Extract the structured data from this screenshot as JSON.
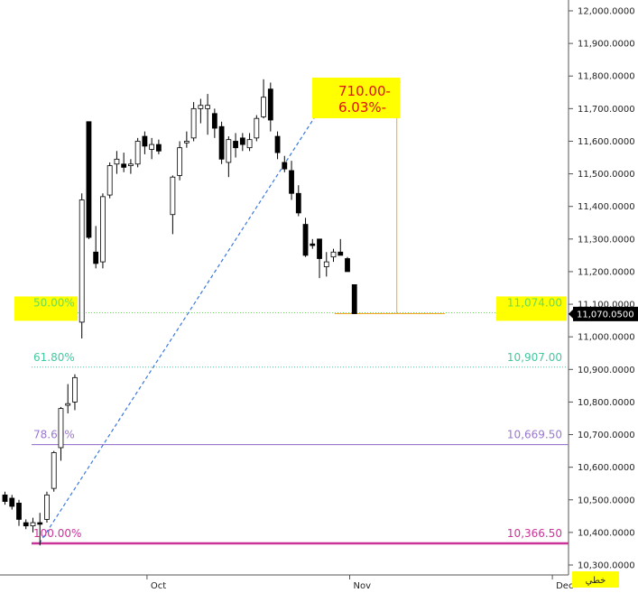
{
  "chart_data": {
    "type": "candlestick",
    "y_axis": {
      "position": "right",
      "min": 10250,
      "max": 12050,
      "ticks": [
        12000,
        11900,
        11800,
        11700,
        11600,
        11500,
        11400,
        11300,
        11200,
        11100,
        11000,
        10900,
        10800,
        10700,
        10600,
        10500,
        10400,
        10300
      ],
      "tick_labels": [
        "12,000.0000",
        "11,900.0000",
        "11,800.0000",
        "11,700.0000",
        "11,600.0000",
        "11,500.0000",
        "11,400.0000",
        "11,300.0000",
        "11,200.0000",
        "11,100.0000",
        "11,000.0000",
        "10,900.0000",
        "10,800.0000",
        "10,700.0000",
        "10,600.0000",
        "10,500.0000",
        "10,400.0000",
        "10,300.0000"
      ]
    },
    "x_axis": {
      "labels": [
        {
          "text": "Oct",
          "index": 20
        },
        {
          "text": "Nov",
          "index": 49
        },
        {
          "text": "Dec",
          "index": 78
        }
      ]
    },
    "last_price": {
      "value": 11070.05,
      "label": "11,070.0500",
      "color": "#000000"
    },
    "fib_levels": [
      {
        "pct": "50.00%",
        "value": 11074.0,
        "value_label": "11,074.00",
        "color": "#66dd55",
        "style": "dotted",
        "highlight": true
      },
      {
        "pct": "61.80%",
        "value": 10907.0,
        "value_label": "10,907.00",
        "color": "#44c8a0",
        "style": "dotted",
        "highlight": false
      },
      {
        "pct": "78.60%",
        "value": 10669.5,
        "value_label": "10,669.50",
        "color": "#9a78d0",
        "style": "solid",
        "highlight": false
      },
      {
        "pct": "100.00%",
        "value": 10366.5,
        "value_label": "10,366.50",
        "color": "#cc3399",
        "style": "solid-thick",
        "highlight": false
      }
    ],
    "fib_trendline": {
      "from": {
        "index": 5,
        "value": 10366.5
      },
      "to": {
        "index": 48,
        "value": 11781
      },
      "color": "#3a78e0"
    },
    "measure": {
      "line1": "710.00-",
      "line2": "6.03%-",
      "from": {
        "index": 48,
        "value": 11781
      },
      "to": {
        "index": 63,
        "value": 11071
      },
      "color": "#f5a623"
    },
    "candles": [
      {
        "o": 10515,
        "h": 10525,
        "l": 10485,
        "c": 10495
      },
      {
        "o": 10505,
        "h": 10515,
        "l": 10470,
        "c": 10480
      },
      {
        "o": 10490,
        "h": 10500,
        "l": 10420,
        "c": 10440
      },
      {
        "o": 10430,
        "h": 10440,
        "l": 10410,
        "c": 10420
      },
      {
        "o": 10420,
        "h": 10445,
        "l": 10400,
        "c": 10430
      },
      {
        "o": 10430,
        "h": 10460,
        "l": 10360,
        "c": 10425
      },
      {
        "o": 10440,
        "h": 10525,
        "l": 10430,
        "c": 10515
      },
      {
        "o": 10535,
        "h": 10650,
        "l": 10525,
        "c": 10645
      },
      {
        "o": 10660,
        "h": 10785,
        "l": 10620,
        "c": 10780
      },
      {
        "o": 10790,
        "h": 10855,
        "l": 10765,
        "c": 10795
      },
      {
        "o": 10800,
        "h": 10885,
        "l": 10775,
        "c": 10875
      },
      {
        "o": 11045,
        "h": 11440,
        "l": 10995,
        "c": 11420
      },
      {
        "o": 11660,
        "h": 11660,
        "l": 11300,
        "c": 11305
      },
      {
        "o": 11260,
        "h": 11340,
        "l": 11210,
        "c": 11225
      },
      {
        "o": 11230,
        "h": 11440,
        "l": 11210,
        "c": 11430
      },
      {
        "o": 11435,
        "h": 11535,
        "l": 11425,
        "c": 11525
      },
      {
        "o": 11530,
        "h": 11570,
        "l": 11500,
        "c": 11545
      },
      {
        "o": 11530,
        "h": 11565,
        "l": 11505,
        "c": 11520
      },
      {
        "o": 11525,
        "h": 11545,
        "l": 11500,
        "c": 11530
      },
      {
        "o": 11530,
        "h": 11610,
        "l": 11520,
        "c": 11600
      },
      {
        "o": 11615,
        "h": 11630,
        "l": 11560,
        "c": 11585
      },
      {
        "o": 11575,
        "h": 11610,
        "l": 11545,
        "c": 11590
      },
      {
        "o": 11590,
        "h": 11605,
        "l": 11560,
        "c": 11570
      },
      {
        "o": 11375,
        "h": 11495,
        "l": 11315,
        "c": 11490
      },
      {
        "o": 11495,
        "h": 11600,
        "l": 11480,
        "c": 11580
      },
      {
        "o": 11595,
        "h": 11630,
        "l": 11580,
        "c": 11600
      },
      {
        "o": 11610,
        "h": 11720,
        "l": 11600,
        "c": 11700
      },
      {
        "o": 11700,
        "h": 11730,
        "l": 11655,
        "c": 11710
      },
      {
        "o": 11700,
        "h": 11745,
        "l": 11620,
        "c": 11710
      },
      {
        "o": 11685,
        "h": 11700,
        "l": 11610,
        "c": 11640
      },
      {
        "o": 11645,
        "h": 11660,
        "l": 11530,
        "c": 11545
      },
      {
        "o": 11535,
        "h": 11615,
        "l": 11490,
        "c": 11605
      },
      {
        "o": 11600,
        "h": 11625,
        "l": 11550,
        "c": 11580
      },
      {
        "o": 11610,
        "h": 11625,
        "l": 11570,
        "c": 11590
      },
      {
        "o": 11580,
        "h": 11625,
        "l": 11570,
        "c": 11605
      },
      {
        "o": 11610,
        "h": 11680,
        "l": 11600,
        "c": 11670
      },
      {
        "o": 11675,
        "h": 11790,
        "l": 11670,
        "c": 11735
      },
      {
        "o": 11760,
        "h": 11780,
        "l": 11630,
        "c": 11665
      },
      {
        "o": 11615,
        "h": 11630,
        "l": 11545,
        "c": 11565
      },
      {
        "o": 11535,
        "h": 11555,
        "l": 11505,
        "c": 11515
      },
      {
        "o": 11510,
        "h": 11540,
        "l": 11420,
        "c": 11440
      },
      {
        "o": 11440,
        "h": 11465,
        "l": 11370,
        "c": 11380
      },
      {
        "o": 11345,
        "h": 11365,
        "l": 11245,
        "c": 11250
      },
      {
        "o": 11285,
        "h": 11300,
        "l": 11270,
        "c": 11280
      },
      {
        "o": 11300,
        "h": 11300,
        "l": 11180,
        "c": 11240
      },
      {
        "o": 11215,
        "h": 11260,
        "l": 11185,
        "c": 11230
      },
      {
        "o": 11245,
        "h": 11270,
        "l": 11230,
        "c": 11260
      },
      {
        "o": 11260,
        "h": 11300,
        "l": 11250,
        "c": 11250
      },
      {
        "o": 11240,
        "h": 11245,
        "l": 11200,
        "c": 11200
      },
      {
        "o": 11160,
        "h": 11160,
        "l": 11071,
        "c": 11071
      }
    ],
    "candle_x_override": [
      0,
      1,
      2,
      3,
      4,
      5,
      6,
      7,
      8,
      9,
      10,
      11,
      12,
      13,
      14,
      15,
      16,
      17,
      18,
      19,
      20,
      21,
      22,
      24,
      25,
      26,
      27,
      28,
      29,
      30,
      31,
      32,
      33,
      34,
      35,
      36,
      37,
      38,
      39,
      40,
      41,
      42,
      43,
      44,
      45,
      46,
      47,
      48,
      49,
      50
    ],
    "bottom_label": "خطي"
  }
}
